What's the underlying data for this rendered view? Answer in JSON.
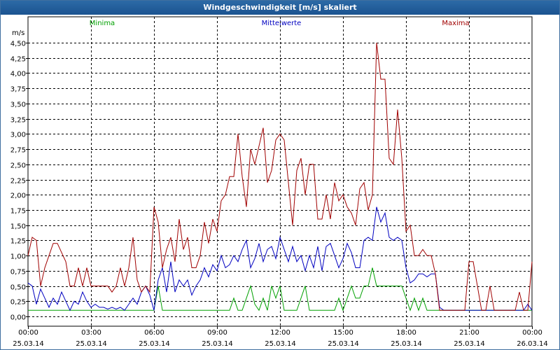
{
  "window": {
    "title": "Windgeschwindigkeit [m/s] skaliert"
  },
  "chart_data": {
    "type": "line",
    "title": "Windgeschwindigkeit [m/s] skaliert",
    "ylabel": "m/s",
    "xlabel": "",
    "ylim": [
      0,
      4.6
    ],
    "xlim_hours": [
      0,
      24
    ],
    "yticks": [
      "0,00",
      "0,25",
      "0,50",
      "0,75",
      "1,00",
      "1,25",
      "1,50",
      "1,75",
      "2,00",
      "2,25",
      "2,50",
      "2,75",
      "3,00",
      "3,25",
      "3,50",
      "3,75",
      "4,00",
      "4,25",
      "4,50"
    ],
    "xticks": [
      {
        "time": "00:00",
        "date": "25.03.14"
      },
      {
        "time": "03:00",
        "date": "25.03.14"
      },
      {
        "time": "06:00",
        "date": "25.03.14"
      },
      {
        "time": "09:00",
        "date": "25.03.14"
      },
      {
        "time": "12:00",
        "date": "25.03.14"
      },
      {
        "time": "15:00",
        "date": "25.03.14"
      },
      {
        "time": "18:00",
        "date": "25.03.14"
      },
      {
        "time": "21:00",
        "date": "25.03.14"
      },
      {
        "time": "00:00",
        "date": "26.03.14"
      }
    ],
    "grid": true,
    "legend_position": "top",
    "colors": {
      "Minima": "#00a000",
      "Mittelwerte": "#0000c0",
      "Maxima": "#a00000"
    },
    "x": [
      0.0,
      0.2,
      0.4,
      0.6,
      0.8,
      1.0,
      1.2,
      1.4,
      1.6,
      1.8,
      2.0,
      2.2,
      2.4,
      2.6,
      2.8,
      3.0,
      3.2,
      3.4,
      3.6,
      3.8,
      4.0,
      4.2,
      4.4,
      4.6,
      4.8,
      5.0,
      5.2,
      5.4,
      5.6,
      5.8,
      6.0,
      6.2,
      6.4,
      6.6,
      6.8,
      7.0,
      7.2,
      7.4,
      7.6,
      7.8,
      8.0,
      8.2,
      8.4,
      8.6,
      8.8,
      9.0,
      9.2,
      9.4,
      9.6,
      9.8,
      10.0,
      10.2,
      10.4,
      10.6,
      10.8,
      11.0,
      11.2,
      11.4,
      11.6,
      11.8,
      12.0,
      12.2,
      12.4,
      12.6,
      12.8,
      13.0,
      13.2,
      13.4,
      13.6,
      13.8,
      14.0,
      14.2,
      14.4,
      14.6,
      14.8,
      15.0,
      15.2,
      15.4,
      15.6,
      15.8,
      16.0,
      16.2,
      16.4,
      16.6,
      16.8,
      17.0,
      17.2,
      17.4,
      17.6,
      17.8,
      18.0,
      18.2,
      18.4,
      18.6,
      18.8,
      19.0,
      19.2,
      19.4,
      19.6,
      19.8,
      20.0,
      20.2,
      20.4,
      20.6,
      20.8,
      21.0,
      21.2,
      21.4,
      21.6,
      21.8,
      22.0,
      22.2,
      22.4,
      22.6,
      22.8,
      23.0,
      23.2,
      23.4,
      23.6,
      23.8,
      24.0
    ],
    "series": [
      {
        "name": "Minima",
        "values": [
          0.1,
          0.1,
          0.1,
          0.1,
          0.1,
          0.1,
          0.1,
          0.1,
          0.1,
          0.1,
          0.1,
          0.1,
          0.1,
          0.1,
          0.1,
          0.1,
          0.1,
          0.1,
          0.1,
          0.1,
          0.1,
          0.1,
          0.1,
          0.1,
          0.1,
          0.1,
          0.1,
          0.1,
          0.1,
          0.1,
          0.1,
          0.5,
          0.1,
          0.1,
          0.1,
          0.1,
          0.1,
          0.1,
          0.1,
          0.1,
          0.1,
          0.1,
          0.1,
          0.1,
          0.1,
          0.1,
          0.1,
          0.1,
          0.1,
          0.3,
          0.1,
          0.1,
          0.3,
          0.5,
          0.2,
          0.1,
          0.3,
          0.1,
          0.5,
          0.3,
          0.5,
          0.1,
          0.1,
          0.1,
          0.1,
          0.3,
          0.5,
          0.1,
          0.1,
          0.1,
          0.1,
          0.1,
          0.1,
          0.1,
          0.3,
          0.1,
          0.3,
          0.5,
          0.3,
          0.3,
          0.5,
          0.5,
          0.8,
          0.5,
          0.5,
          0.5,
          0.5,
          0.5,
          0.5,
          0.5,
          0.3,
          0.1,
          0.3,
          0.1,
          0.3,
          0.1,
          0.1,
          0.1,
          0.1,
          0.1,
          0.1,
          0.1,
          0.1,
          0.1,
          0.1,
          0.1,
          0.1,
          0.1,
          0.1,
          0.1,
          0.1,
          0.1,
          0.1,
          0.1,
          0.1,
          0.1,
          0.1,
          0.1,
          0.1,
          0.1,
          0.1
        ]
      },
      {
        "name": "Mittelwerte",
        "values": [
          0.55,
          0.5,
          0.2,
          0.45,
          0.3,
          0.15,
          0.3,
          0.2,
          0.4,
          0.25,
          0.1,
          0.25,
          0.2,
          0.4,
          0.25,
          0.15,
          0.2,
          0.15,
          0.15,
          0.12,
          0.15,
          0.12,
          0.15,
          0.1,
          0.2,
          0.3,
          0.2,
          0.4,
          0.5,
          0.35,
          0.1,
          0.6,
          0.8,
          0.4,
          0.9,
          0.4,
          0.6,
          0.5,
          0.6,
          0.35,
          0.5,
          0.6,
          0.8,
          0.65,
          0.85,
          0.75,
          1.0,
          0.8,
          0.85,
          1.0,
          0.9,
          1.1,
          1.25,
          0.8,
          0.95,
          1.2,
          0.9,
          1.1,
          1.15,
          0.95,
          1.3,
          1.1,
          0.9,
          1.15,
          0.9,
          1.0,
          0.75,
          1.0,
          0.8,
          1.15,
          0.75,
          1.15,
          1.2,
          1.0,
          0.8,
          0.95,
          1.2,
          1.05,
          0.8,
          0.8,
          1.25,
          1.3,
          1.25,
          1.8,
          1.55,
          1.7,
          1.3,
          1.25,
          1.3,
          1.25,
          0.8,
          0.55,
          0.6,
          0.7,
          0.7,
          0.65,
          0.7,
          0.7,
          0.15,
          0.1,
          0.1,
          0.1,
          0.1,
          0.1,
          0.1,
          0.1,
          0.1,
          0.1,
          0.1,
          0.1,
          0.1,
          0.1,
          0.1,
          0.1,
          0.1,
          0.1,
          0.1,
          0.1,
          0.1,
          0.2,
          0.1
        ]
      },
      {
        "name": "Maxima",
        "values": [
          1.0,
          1.3,
          1.25,
          0.5,
          0.8,
          1.0,
          1.2,
          1.2,
          1.05,
          0.9,
          0.5,
          0.5,
          0.8,
          0.5,
          0.8,
          0.5,
          0.5,
          0.5,
          0.5,
          0.5,
          0.4,
          0.5,
          0.8,
          0.5,
          0.8,
          1.3,
          0.6,
          0.4,
          0.5,
          0.4,
          1.8,
          1.55,
          0.8,
          1.1,
          1.3,
          0.9,
          1.6,
          1.1,
          1.3,
          0.8,
          0.8,
          1.0,
          1.55,
          1.2,
          1.6,
          1.4,
          1.9,
          2.0,
          2.3,
          2.3,
          3.0,
          2.3,
          1.8,
          2.75,
          2.5,
          2.8,
          3.1,
          2.2,
          2.4,
          2.9,
          3.0,
          2.9,
          2.2,
          1.5,
          2.4,
          2.6,
          2.0,
          2.5,
          2.5,
          1.6,
          1.6,
          2.0,
          1.6,
          2.2,
          1.9,
          2.0,
          1.8,
          1.7,
          1.5,
          2.1,
          2.2,
          1.75,
          2.0,
          4.5,
          3.9,
          3.9,
          2.6,
          2.5,
          3.4,
          2.6,
          1.4,
          1.5,
          1.0,
          1.0,
          1.1,
          1.0,
          1.0,
          0.7,
          0.1,
          0.1,
          0.1,
          0.1,
          0.1,
          0.1,
          0.1,
          0.9,
          0.9,
          0.5,
          0.1,
          0.1,
          0.5,
          0.1,
          0.1,
          0.1,
          0.1,
          0.1,
          0.1,
          0.4,
          0.1,
          0.1,
          0.9
        ]
      }
    ]
  }
}
